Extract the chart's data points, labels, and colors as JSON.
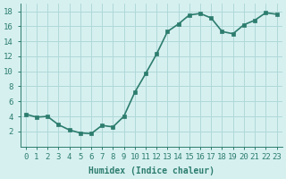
{
  "x": [
    0,
    1,
    2,
    3,
    4,
    5,
    6,
    7,
    8,
    9,
    10,
    11,
    12,
    13,
    14,
    15,
    16,
    17,
    18,
    19,
    20,
    21,
    22,
    23
  ],
  "y": [
    4.3,
    3.9,
    4.0,
    2.9,
    2.2,
    1.8,
    1.7,
    2.8,
    2.6,
    4.0,
    7.2,
    9.7,
    12.3,
    15.3,
    16.3,
    17.5,
    17.7,
    17.1,
    15.3,
    15.0,
    16.2,
    16.8,
    17.8,
    17.6
  ],
  "line_color": "#2d7d6e",
  "marker_color": "#2d7d6e",
  "bg_color": "#d6f0f0",
  "grid_color": "#b0d8d8",
  "axis_color": "#2d7d6e",
  "xlabel": "Humidex (Indice chaleur)",
  "ylabel": "",
  "xlim": [
    -0.5,
    23.5
  ],
  "ylim": [
    0,
    19
  ],
  "yticks": [
    2,
    4,
    6,
    8,
    10,
    12,
    14,
    16,
    18
  ],
  "xticks": [
    0,
    1,
    2,
    3,
    4,
    5,
    6,
    7,
    8,
    9,
    10,
    11,
    12,
    13,
    14,
    15,
    16,
    17,
    18,
    19,
    20,
    21,
    22,
    23
  ],
  "xlabel_fontsize": 7,
  "tick_fontsize": 6.5,
  "line_width": 1.2,
  "marker_size": 3
}
